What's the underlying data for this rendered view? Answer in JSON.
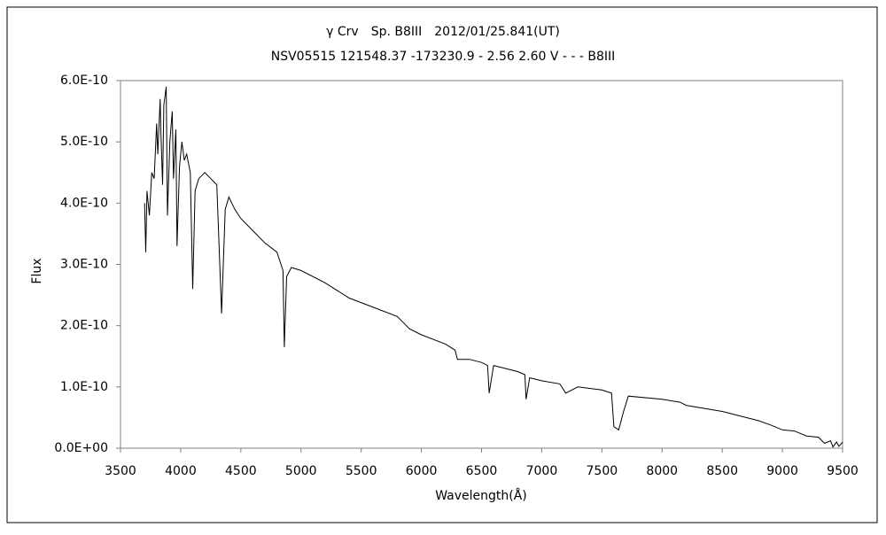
{
  "chart_data": {
    "type": "line",
    "title": "γ Crv　Sp. B8III　2012/01/25.841(UT)",
    "subtitle": "NSV05515 121548.37 -173230.9 - 2.56 2.60 V - - - B8III",
    "x_label": "Wavelength(Å)",
    "y_label": "Flux",
    "color": "#000000",
    "x": [
      3700,
      3710,
      3720,
      3740,
      3760,
      3780,
      3800,
      3810,
      3830,
      3835,
      3850,
      3860,
      3880,
      3890,
      3910,
      3930,
      3940,
      3960,
      3970,
      3990,
      4010,
      4030,
      4050,
      4080,
      4100,
      4120,
      4150,
      4200,
      4250,
      4300,
      4340,
      4370,
      4400,
      4450,
      4500,
      4600,
      4700,
      4800,
      4850,
      4861,
      4880,
      4920,
      5000,
      5200,
      5400,
      5600,
      5800,
      5850,
      5900,
      6000,
      6200,
      6280,
      6300,
      6400,
      6500,
      6550,
      6563,
      6600,
      6800,
      6860,
      6870,
      6900,
      7000,
      7150,
      7200,
      7250,
      7300,
      7500,
      7580,
      7600,
      7640,
      7680,
      7720,
      8000,
      8150,
      8200,
      8500,
      8800,
      8900,
      9000,
      9100,
      9200,
      9300,
      9350,
      9400,
      9420,
      9450,
      9470,
      9500
    ],
    "values": [
      4e-10,
      3.2e-10,
      4.2e-10,
      3.8e-10,
      4.5e-10,
      4.4e-10,
      5.3e-10,
      4.8e-10,
      5.7e-10,
      5.2e-10,
      4.3e-10,
      5.6e-10,
      5.9e-10,
      3.8e-10,
      5e-10,
      5.5e-10,
      4.4e-10,
      5.2e-10,
      3.3e-10,
      4.6e-10,
      5e-10,
      4.7e-10,
      4.8e-10,
      4.5e-10,
      2.6e-10,
      4.2e-10,
      4.4e-10,
      4.5e-10,
      4.4e-10,
      4.3e-10,
      2.2e-10,
      3.9e-10,
      4.1e-10,
      3.9e-10,
      3.75e-10,
      3.55e-10,
      3.35e-10,
      3.2e-10,
      2.9e-10,
      1.65e-10,
      2.8e-10,
      2.95e-10,
      2.9e-10,
      2.7e-10,
      2.45e-10,
      2.3e-10,
      2.15e-10,
      2.05e-10,
      1.95e-10,
      1.85e-10,
      1.7e-10,
      1.6e-10,
      1.45e-10,
      1.45e-10,
      1.4e-10,
      1.35e-10,
      9e-11,
      1.35e-10,
      1.25e-10,
      1.2e-10,
      8e-11,
      1.15e-10,
      1.1e-10,
      1.05e-10,
      9e-11,
      9.5e-11,
      1e-10,
      9.5e-11,
      9e-11,
      3.5e-11,
      3e-11,
      6e-11,
      8.5e-11,
      8e-11,
      7.5e-11,
      7e-11,
      6e-11,
      4.5e-11,
      3.8e-11,
      3e-11,
      2.8e-11,
      2e-11,
      1.8e-11,
      8e-12,
      1.2e-11,
      2e-12,
      1e-11,
      3e-12,
      1e-11
    ],
    "xlim": [
      3500,
      9500
    ],
    "xticks": [
      3500,
      4000,
      4500,
      5000,
      5500,
      6000,
      6500,
      7000,
      7500,
      8000,
      8500,
      9000,
      9500
    ],
    "ylim": [
      0,
      6e-10
    ],
    "yticks": [
      {
        "value": 0,
        "label": "0.0E+00"
      },
      {
        "value": 1e-10,
        "label": "1.0E-10"
      },
      {
        "value": 2e-10,
        "label": "2.0E-10"
      },
      {
        "value": 3e-10,
        "label": "3.0E-10"
      },
      {
        "value": 4e-10,
        "label": "4.0E-10"
      },
      {
        "value": 5e-10,
        "label": "5.0E-10"
      },
      {
        "value": 6e-10,
        "label": "6.0E-10"
      }
    ],
    "grid": false
  }
}
